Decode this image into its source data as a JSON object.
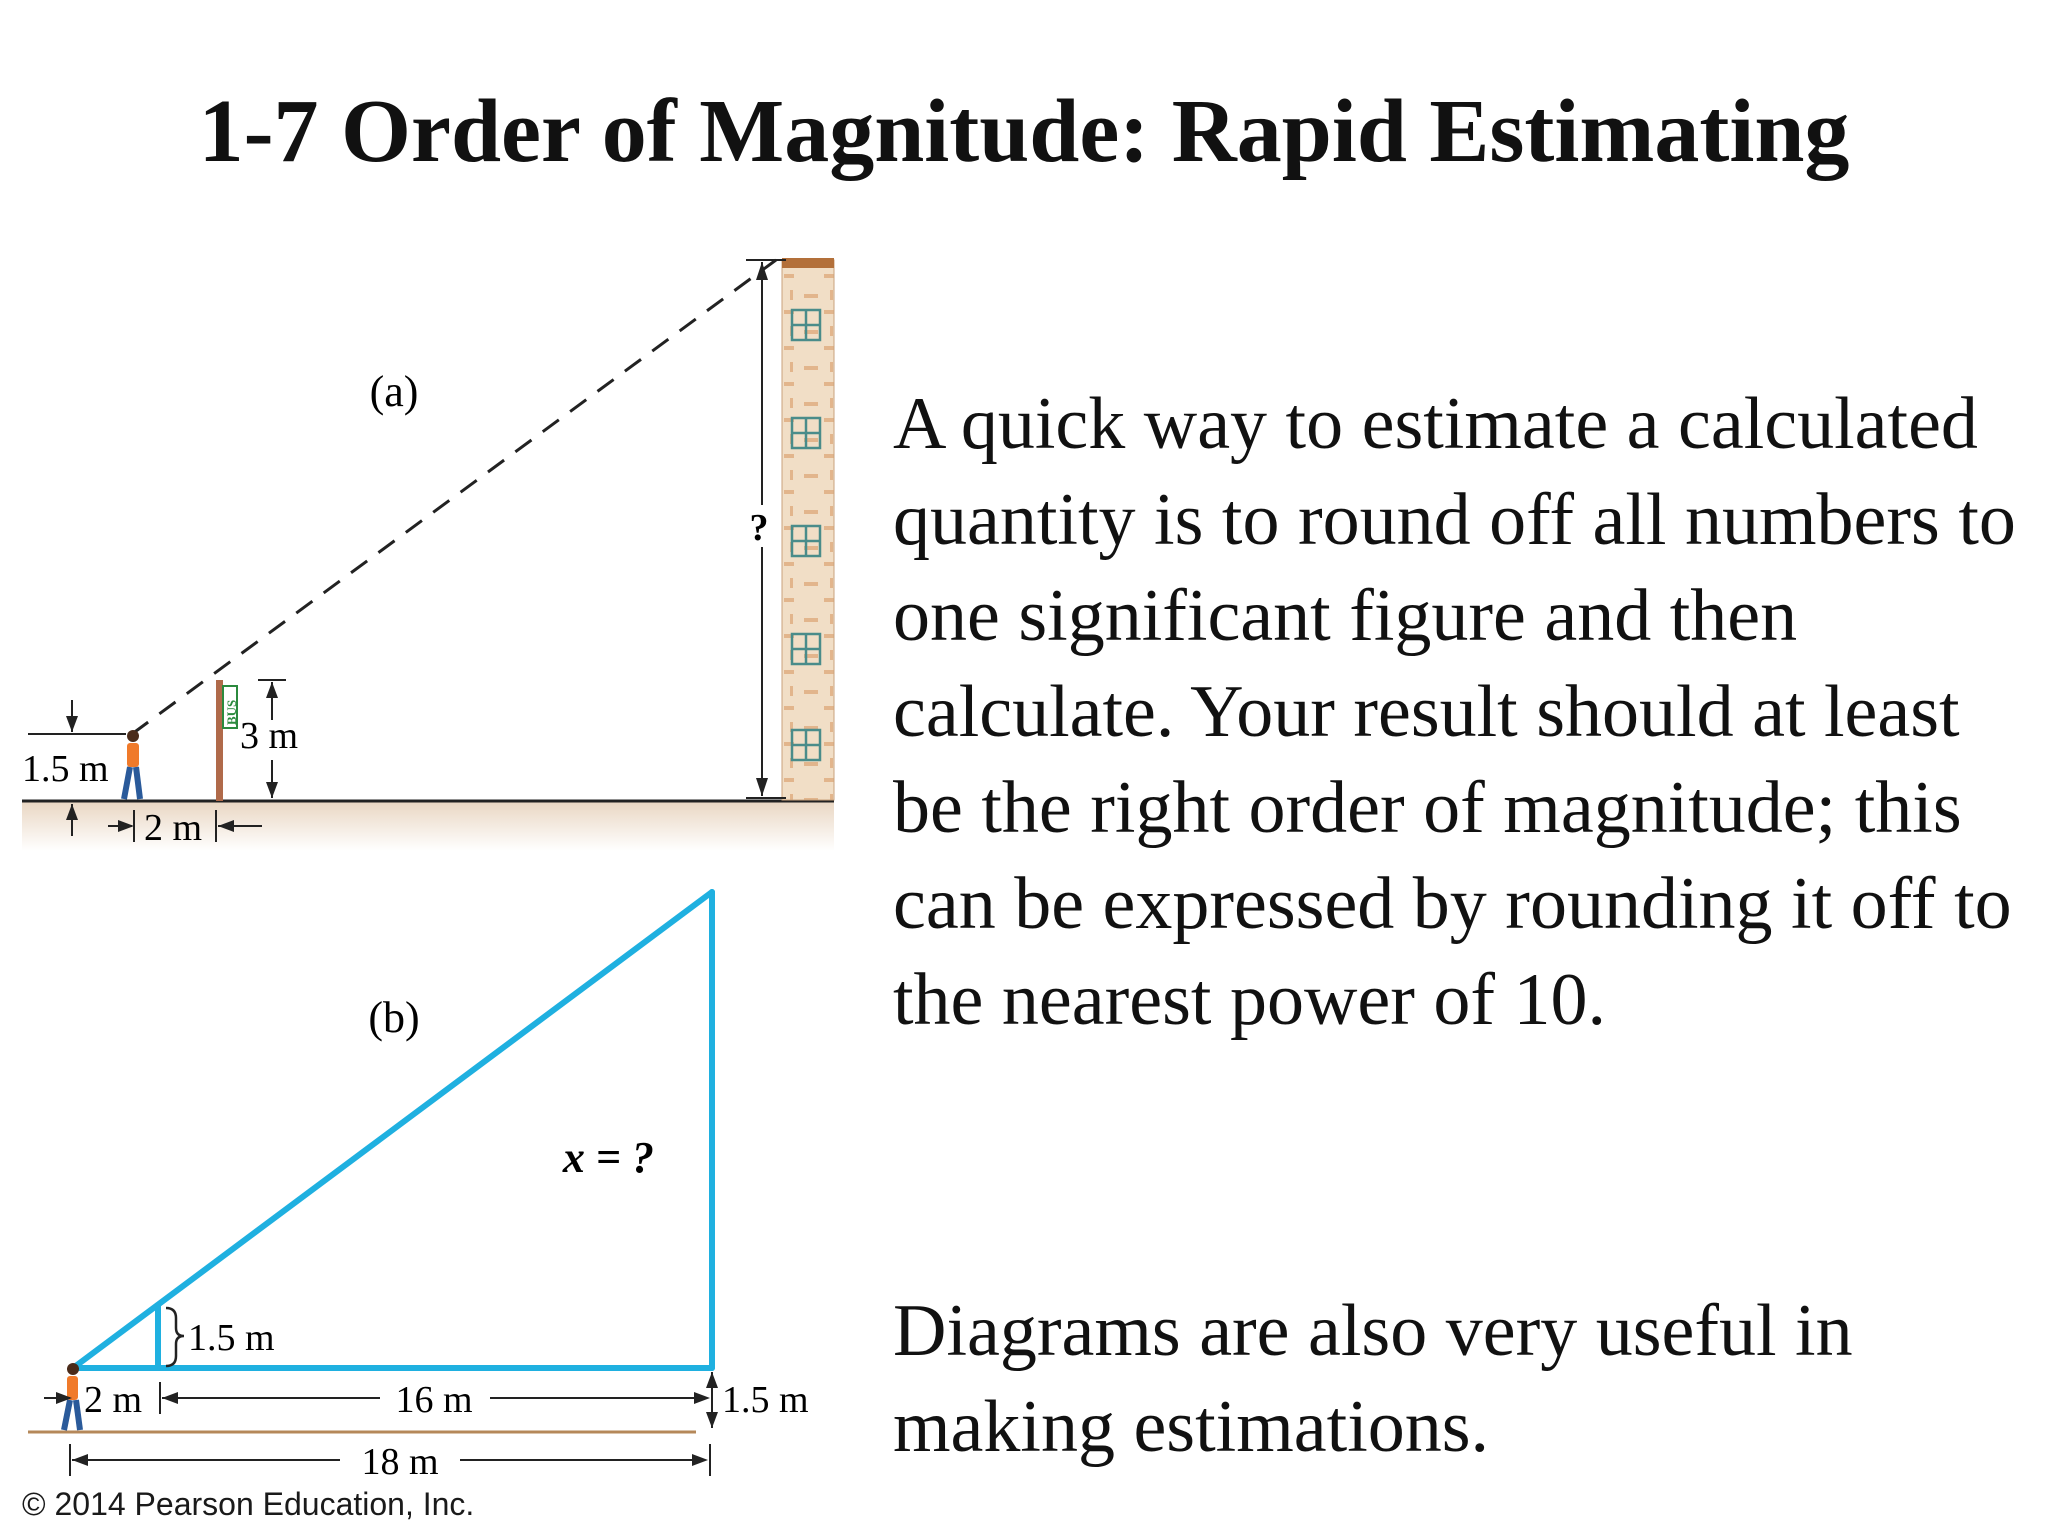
{
  "slide": {
    "title": "1-7 Order of Magnitude: Rapid Estimating",
    "paragraph1": "A quick way to estimate a calculated quantity is to round off all numbers to one significant figure and then calculate. Your result should at least be the right order of magnitude; this can be expressed by rounding it off to the nearest power of 10.",
    "paragraph2": "Diagrams are also very useful in making estimations.",
    "copyright": "© 2014 Pearson Education, Inc."
  },
  "figure_a": {
    "label": "(a)",
    "unknown_height": "?",
    "person_height": "1.5 m",
    "bus_sign_text": "BUS",
    "sign_height": "3 m",
    "sign_distance": "2 m"
  },
  "figure_b": {
    "label": "(b)",
    "unknown": "x = ?",
    "small_height": "1.5 m",
    "short_base": "2 m",
    "long_base": "16 m",
    "total_base": "18 m",
    "eye_offset": "1.5 m"
  },
  "colors": {
    "diagram_blue": "#1fb0e0",
    "ground_brown": "#b5885a",
    "brick": "#f0dcc2",
    "sign_pole": "#b06a4a"
  }
}
